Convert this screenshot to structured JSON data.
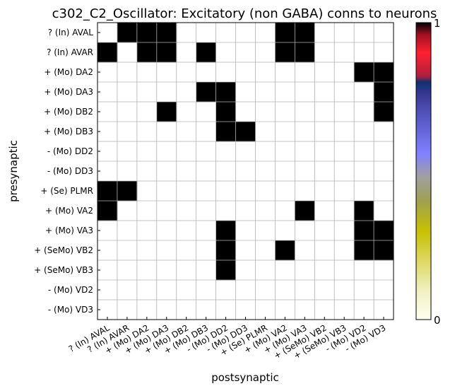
{
  "chart_data": {
    "type": "heatmap",
    "title": "c302_C2_Oscillator: Excitatory (non GABA) conns to neurons",
    "xlabel": "postsynaptic",
    "ylabel": "presynaptic",
    "x_categories": [
      "? (In) AVAL",
      "? (In) AVAR",
      "+ (Mo) DA2",
      "+ (Mo) DA3",
      "+ (Mo) DB2",
      "+ (Mo) DB3",
      "- (Mo) DD2",
      "- (Mo) DD3",
      "+ (Se) PLMR",
      "+ (Mo) VA2",
      "+ (Mo) VA3",
      "+ (SeMo) VB2",
      "+ (SeMo) VB3",
      "- (Mo) VD2",
      "- (Mo) VD3"
    ],
    "y_categories": [
      "? (In) AVAL",
      "? (In) AVAR",
      "+ (Mo) DA2",
      "+ (Mo) DA3",
      "+ (Mo) DB2",
      "+ (Mo) DB3",
      "- (Mo) DD2",
      "- (Mo) DD3",
      "+ (Se) PLMR",
      "+ (Mo) VA2",
      "+ (Mo) VA3",
      "+ (SeMo) VB2",
      "+ (SeMo) VB3",
      "- (Mo) VD2",
      "- (Mo) VD3"
    ],
    "values": [
      [
        0,
        1,
        1,
        1,
        0,
        0,
        0,
        0,
        0,
        1,
        1,
        0,
        0,
        0,
        0
      ],
      [
        1,
        0,
        1,
        1,
        0,
        1,
        0,
        0,
        0,
        1,
        1,
        0,
        0,
        0,
        0
      ],
      [
        0,
        0,
        0,
        0,
        0,
        0,
        0,
        0,
        0,
        0,
        0,
        0,
        0,
        1,
        1
      ],
      [
        0,
        0,
        0,
        0,
        0,
        1,
        1,
        0,
        0,
        0,
        0,
        0,
        0,
        0,
        1
      ],
      [
        0,
        0,
        0,
        1,
        0,
        0,
        1,
        0,
        0,
        0,
        0,
        0,
        0,
        0,
        1
      ],
      [
        0,
        0,
        0,
        0,
        0,
        0,
        1,
        1,
        0,
        0,
        0,
        0,
        0,
        0,
        0
      ],
      [
        0,
        0,
        0,
        0,
        0,
        0,
        0,
        0,
        0,
        0,
        0,
        0,
        0,
        0,
        0
      ],
      [
        0,
        0,
        0,
        0,
        0,
        0,
        0,
        0,
        0,
        0,
        0,
        0,
        0,
        0,
        0
      ],
      [
        1,
        1,
        0,
        0,
        0,
        0,
        0,
        0,
        0,
        0,
        0,
        0,
        0,
        0,
        0
      ],
      [
        1,
        0,
        0,
        0,
        0,
        0,
        0,
        0,
        0,
        0,
        1,
        0,
        0,
        1,
        0
      ],
      [
        0,
        0,
        0,
        0,
        0,
        0,
        1,
        0,
        0,
        0,
        0,
        0,
        0,
        1,
        1
      ],
      [
        0,
        0,
        0,
        0,
        0,
        0,
        1,
        0,
        0,
        1,
        0,
        0,
        0,
        1,
        1
      ],
      [
        0,
        0,
        0,
        0,
        0,
        0,
        1,
        0,
        0,
        0,
        0,
        0,
        0,
        0,
        0
      ],
      [
        0,
        0,
        0,
        0,
        0,
        0,
        0,
        0,
        0,
        0,
        0,
        0,
        0,
        0,
        0
      ],
      [
        0,
        0,
        0,
        0,
        0,
        0,
        0,
        0,
        0,
        0,
        0,
        0,
        0,
        0,
        0
      ]
    ],
    "vmin": 0,
    "vmax": 1,
    "grid": true,
    "colorbar": {
      "position": "right",
      "tick_labels": [
        "0",
        "1"
      ],
      "colors": [
        "#fffff0",
        "#f0f0c0",
        "#c8c000",
        "#a0a050",
        "#a0a0a0",
        "#8080ff",
        "#5050b8",
        "#383890",
        "#103070",
        "#b02040",
        "#ff2030",
        "#a01020",
        "#000000"
      ]
    }
  }
}
